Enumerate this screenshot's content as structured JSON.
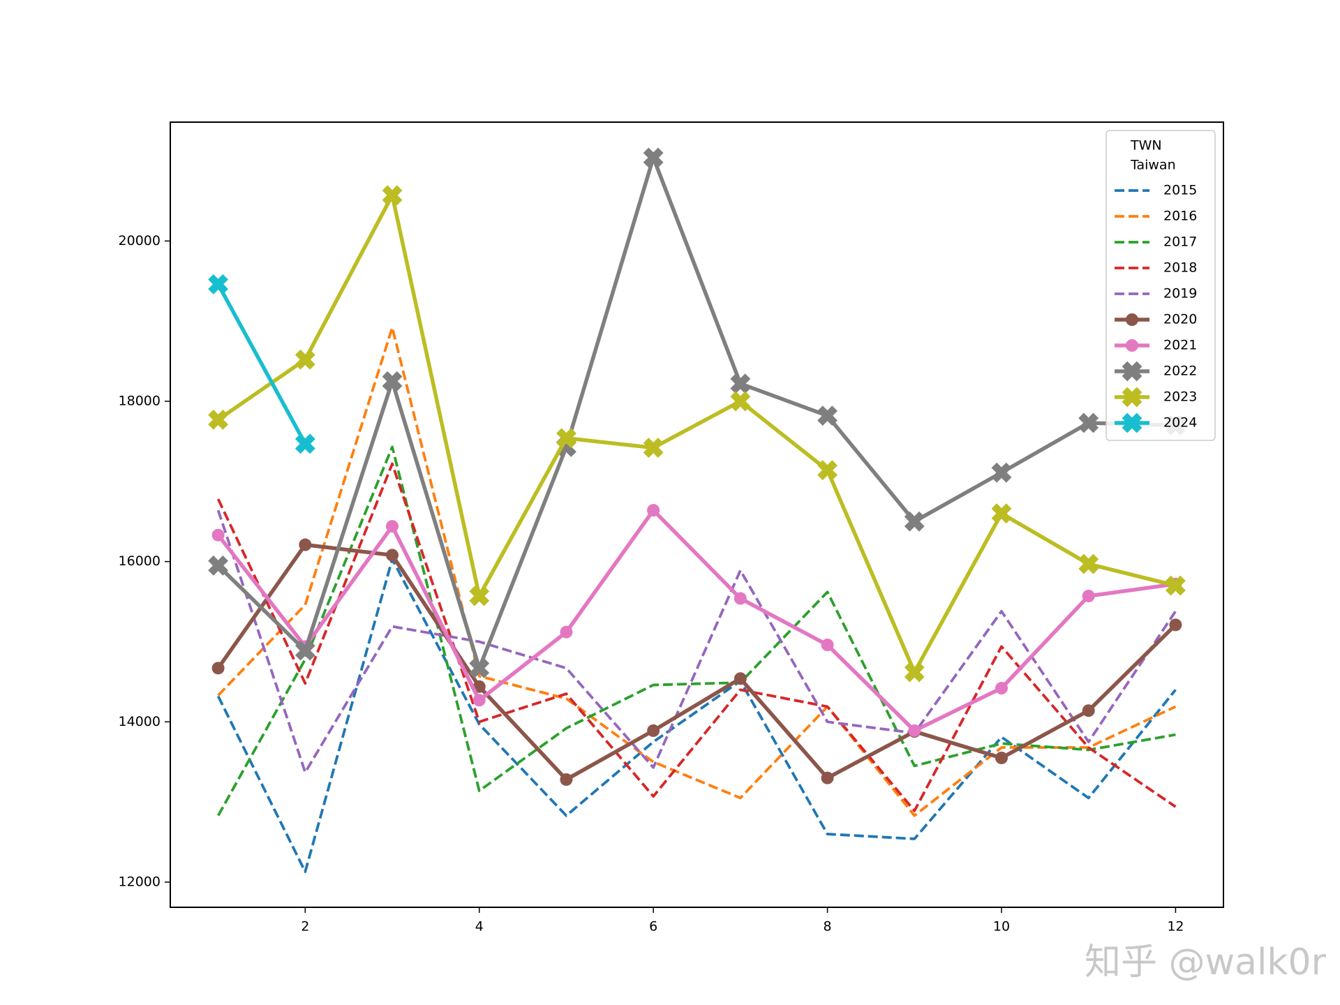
{
  "chart_data": {
    "type": "line",
    "x": [
      1,
      2,
      3,
      4,
      5,
      6,
      7,
      8,
      9,
      10,
      11,
      12
    ],
    "xlim": [
      0.45,
      12.55
    ],
    "xticks": [
      2,
      4,
      6,
      8,
      10,
      12
    ],
    "ylim": [
      11686,
      21483
    ],
    "yticks": [
      12000,
      14000,
      16000,
      18000,
      20000
    ],
    "legend_title": [
      "TWN",
      "Taiwan"
    ],
    "legend_position": "upper right",
    "watermark": "知乎 @walk0r",
    "series": [
      {
        "name": "2015",
        "color": "#1f77b4",
        "linestyle": "dashed",
        "marker": "none",
        "values": [
          14320,
          12130,
          16030,
          13970,
          12830,
          13750,
          14510,
          12600,
          12540,
          13810,
          13050,
          14400
        ]
      },
      {
        "name": "2016",
        "color": "#ff7f0e",
        "linestyle": "dashed",
        "marker": "none",
        "values": [
          14330,
          15460,
          18920,
          14570,
          14290,
          13500,
          13050,
          14190,
          12830,
          13680,
          13680,
          14190
        ]
      },
      {
        "name": "2017",
        "color": "#2ca02c",
        "linestyle": "dashed",
        "marker": "none",
        "values": [
          12830,
          14780,
          17430,
          13140,
          13920,
          14460,
          14490,
          15620,
          13450,
          13730,
          13650,
          13840
        ]
      },
      {
        "name": "2018",
        "color": "#d62728",
        "linestyle": "dashed",
        "marker": "none",
        "values": [
          16780,
          14480,
          17220,
          14000,
          14350,
          13070,
          14400,
          14190,
          12890,
          14940,
          13680,
          12940
        ]
      },
      {
        "name": "2019",
        "color": "#9467bd",
        "linestyle": "dashed",
        "marker": "none",
        "values": [
          16640,
          13370,
          15190,
          15000,
          14670,
          13430,
          15890,
          14000,
          13860,
          15380,
          13750,
          15380
        ]
      },
      {
        "name": "2020",
        "color": "#8c564b",
        "linestyle": "solid",
        "marker": "circle",
        "values": [
          14670,
          16210,
          16080,
          14440,
          13280,
          13890,
          14540,
          13300,
          13880,
          13550,
          14140,
          15210
        ]
      },
      {
        "name": "2021",
        "color": "#e377c2",
        "linestyle": "solid",
        "marker": "circle",
        "values": [
          16330,
          14940,
          16440,
          14270,
          15120,
          16640,
          15540,
          14960,
          13890,
          14420,
          15570,
          15720
        ]
      },
      {
        "name": "2022",
        "color": "#7f7f7f",
        "linestyle": "solid",
        "marker": "x",
        "values": [
          15950,
          14890,
          18250,
          14670,
          17430,
          21040,
          18220,
          17820,
          16500,
          17110,
          17730,
          17700
        ]
      },
      {
        "name": "2023",
        "color": "#bcbd22",
        "linestyle": "solid",
        "marker": "x",
        "values": [
          17770,
          18520,
          20570,
          15570,
          17540,
          17420,
          18000,
          17140,
          14620,
          16600,
          15970,
          15700
        ]
      },
      {
        "name": "2024",
        "color": "#17becf",
        "linestyle": "solid",
        "marker": "x",
        "values": [
          19460,
          17470,
          null,
          null,
          null,
          null,
          null,
          null,
          null,
          null,
          null,
          null
        ]
      }
    ]
  }
}
